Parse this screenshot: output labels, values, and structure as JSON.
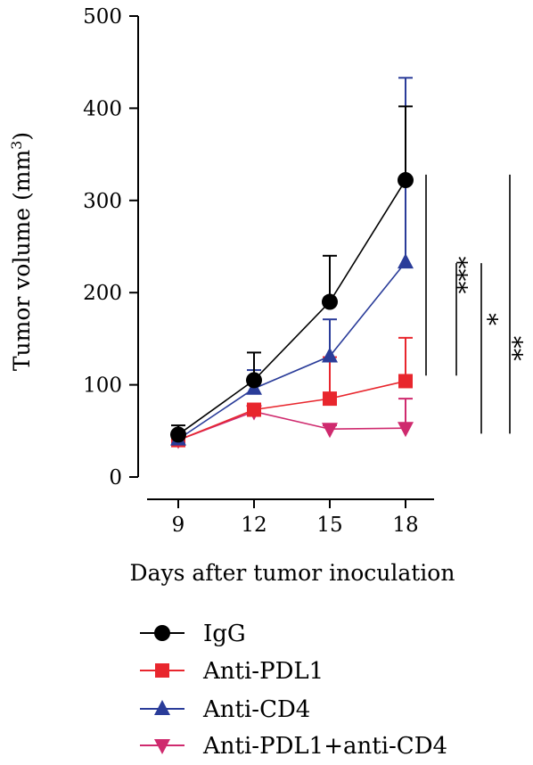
{
  "chart_data": {
    "type": "line",
    "title": "",
    "xlabel": "Days after tumor inoculation",
    "ylabel": "Tumor volume (mm",
    "ylabel_superscript": "3",
    "ylabel_close": ")",
    "x": [
      9,
      12,
      15,
      18
    ],
    "xticks": [
      "9",
      "12",
      "15",
      "18"
    ],
    "ylim": [
      0,
      500
    ],
    "yticks": [
      "0",
      "100",
      "200",
      "300",
      "400",
      "500"
    ],
    "ytick_values": [
      0,
      100,
      200,
      300,
      400,
      500
    ],
    "grid": false,
    "legend_position": "bottom",
    "series": [
      {
        "name": "IgG",
        "marker": "circle",
        "color": "#000000",
        "values": [
          46,
          105,
          190,
          322
        ],
        "error": [
          10,
          30,
          50,
          80
        ]
      },
      {
        "name": "Anti-PDL1",
        "marker": "square",
        "color": "#e8262d",
        "values": [
          40,
          73,
          85,
          104
        ],
        "error": [
          5,
          5,
          45,
          47
        ]
      },
      {
        "name": "Anti-CD4",
        "marker": "triangle-up",
        "color": "#2a3c99",
        "values": [
          41,
          96,
          131,
          233
        ],
        "error": [
          5,
          20,
          40,
          200
        ]
      },
      {
        "name": "Anti-PDL1+anti-CD4",
        "marker": "triangle-down",
        "color": "#cf2a6e",
        "values": [
          40,
          71,
          52,
          53
        ],
        "error": [
          4,
          4,
          4,
          32
        ]
      }
    ],
    "significance": [
      {
        "label": "***",
        "from": 110,
        "to": 328
      },
      {
        "label": "*",
        "from": 110,
        "to": 232
      },
      {
        "label": "**",
        "from": 47,
        "to": 232
      },
      {
        "label": "***",
        "from": 47,
        "to": 328
      }
    ]
  }
}
